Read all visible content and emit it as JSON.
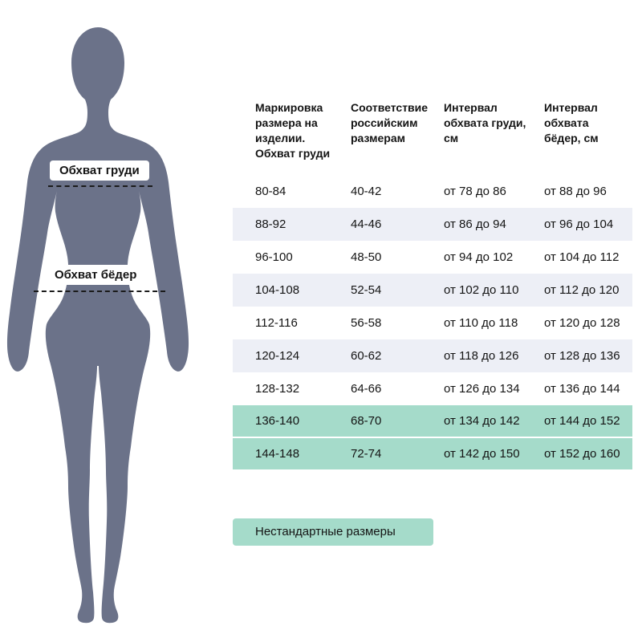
{
  "figure": {
    "chest_label": "Обхват груди",
    "hips_label": "Обхват бёдер",
    "silhouette_color": "#6b7289"
  },
  "chart_data": {
    "type": "table",
    "columns": [
      "Маркировка размера на изделии. Обхват груди",
      "Соответствие российским размерам",
      "Интервал обхвата груди, см",
      "Интервал обхвата бёдер, см"
    ],
    "rows": [
      [
        "80-84",
        "40-42",
        "от 78 до 86",
        "от 88 до 96"
      ],
      [
        "88-92",
        "44-46",
        "от 86 до 94",
        "от 96 до 104"
      ],
      [
        "96-100",
        "48-50",
        "от 94 до 102",
        "от 104 до 112"
      ],
      [
        "104-108",
        "52-54",
        "от 102 до 110",
        "от 112 до 120"
      ],
      [
        "112-116",
        "56-58",
        "от 110 до 118",
        "от 120 до 128"
      ],
      [
        "120-124",
        "60-62",
        "от 118 до 126",
        "от 128 до 136"
      ],
      [
        "128-132",
        "64-66",
        "от 126 до 134",
        "от 136 до 144"
      ],
      [
        "136-140",
        "68-70",
        "от 134 до 142",
        "от 144 до 152"
      ],
      [
        "144-148",
        "72-74",
        "от 142 до 150",
        "от 152 до 160"
      ]
    ],
    "highlighted_row_indices": [
      7,
      8
    ],
    "highlight_color": "#a5dbca",
    "stripe_color": "#edeff6",
    "highlight_meaning": "Нестандартные размеры"
  },
  "legend": {
    "nonstandard_label": "Нестандартные размеры"
  }
}
